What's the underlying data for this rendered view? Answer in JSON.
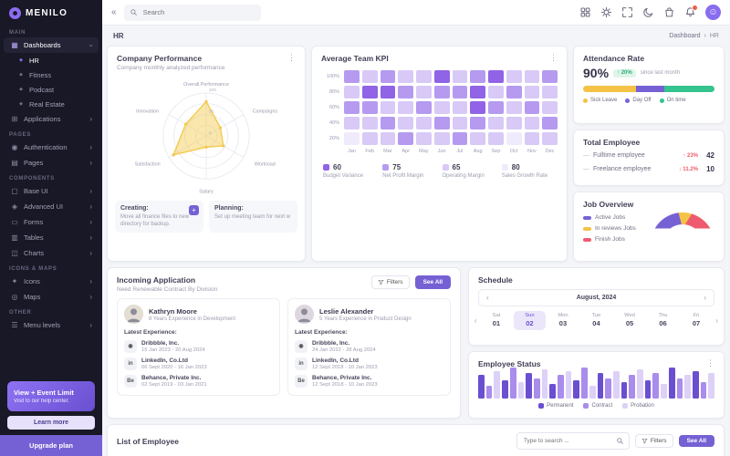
{
  "app": {
    "name": "MENILO"
  },
  "topbar": {
    "back_glyph": "«",
    "search_placeholder": "Search",
    "avatar_glyph": "☺"
  },
  "breadcrumb": {
    "title": "HR",
    "root": "Dashboard",
    "separator": "›",
    "current": "HR"
  },
  "sidebar": {
    "sections": [
      {
        "label": "MAIN",
        "items": [
          {
            "label": "Dashboards",
            "glyph": "▦"
          },
          {
            "label": "HR",
            "glyph": "◆"
          },
          {
            "label": "Fitness",
            "glyph": "◆"
          },
          {
            "label": "Podcast",
            "glyph": "◆"
          },
          {
            "label": "Real Estate",
            "glyph": "◆"
          },
          {
            "label": "Applications",
            "glyph": "⊞"
          }
        ]
      },
      {
        "label": "PAGES",
        "items": [
          {
            "label": "Authentication",
            "glyph": "◉"
          },
          {
            "label": "Pages",
            "glyph": "▤"
          }
        ]
      },
      {
        "label": "COMPONENTS",
        "items": [
          {
            "label": "Base UI",
            "glyph": "▢"
          },
          {
            "label": "Advanced UI",
            "glyph": "◈"
          },
          {
            "label": "Forms",
            "glyph": "▭"
          },
          {
            "label": "Tables",
            "glyph": "▥"
          },
          {
            "label": "Charts",
            "glyph": "◫"
          }
        ]
      },
      {
        "label": "ICONS & MAPS",
        "items": [
          {
            "label": "Icons",
            "glyph": "✦"
          },
          {
            "label": "Maps",
            "glyph": "◎"
          }
        ]
      },
      {
        "label": "OTHER",
        "items": [
          {
            "label": "Menu levels",
            "glyph": "☰"
          }
        ]
      }
    ],
    "promo": {
      "title": "View + Event Limit",
      "subtitle": "Visit to our help center.",
      "learn_more": "Learn more",
      "upgrade": "Upgrade plan"
    }
  },
  "company_performance": {
    "title": "Company Performance",
    "subtitle": "Company monthly analyzed performance",
    "creating_label": "Creating:",
    "creating_text": "Move all finance files to new directory for backup.",
    "planning_label": "Planning:",
    "planning_text": "Set up meeting team for next w"
  },
  "avg_team_kpi": {
    "title": "Average Team KPI",
    "legend": [
      {
        "value": "60",
        "label": "Budget Variance",
        "color": "#9163e6"
      },
      {
        "value": "75",
        "label": "Net Profit Margin",
        "color": "#b59af0"
      },
      {
        "value": "65",
        "label": "Operating Margin",
        "color": "#d8c9f6"
      },
      {
        "value": "80",
        "label": "Sales Growth Rate",
        "color": "#f0ebfc"
      }
    ]
  },
  "attendance": {
    "title": "Attendance Rate",
    "value": "90%",
    "delta": "↑ 20%",
    "note": "since last month",
    "legend": [
      {
        "label": "Sick Leave",
        "color": "#f4c245"
      },
      {
        "label": "Day Off",
        "color": "#7661d4"
      },
      {
        "label": "On time",
        "color": "#35c48e"
      }
    ]
  },
  "total_employee": {
    "title": "Total Employee",
    "rows": [
      {
        "dash": "—",
        "label": "Fulltime employee",
        "delta": "↑ 23%",
        "delta_color": "#ee5d6c",
        "value": "42"
      },
      {
        "dash": "—",
        "label": "Freelance employee",
        "delta": "↓ 11.2%",
        "delta_color": "#ee5d6c",
        "value": "10"
      }
    ]
  },
  "job_overview": {
    "title": "Job Overview",
    "legend": [
      {
        "label": "Active Jobs",
        "color": "#7661d4"
      },
      {
        "label": "In reviews Jobs",
        "color": "#f4c245"
      },
      {
        "label": "Finish Jobs",
        "color": "#ef5b6e"
      }
    ]
  },
  "incoming_application": {
    "title": "Incoming Application",
    "subtitle": "Need Renewable Contract By Division",
    "filters_label": "Filters",
    "see_all_label": "See All",
    "latest_label": "Latest Experience:",
    "applicants": [
      {
        "name": "Kathryn Moore",
        "experience": "8 Years Experience in Development",
        "entries": [
          {
            "icon": "dribbble-icon",
            "glyph": "◉",
            "company": "Dribbble, Inc.",
            "period": "15 Jan 2023 - 20 Aug 2024"
          },
          {
            "icon": "linkedin-icon",
            "glyph": "in",
            "company": "LinkedIn, Co.Ltd",
            "period": "06 Sept 2020 - 16 Jan 2023"
          },
          {
            "icon": "behance-icon",
            "glyph": "Be",
            "company": "Behance, Private Inc.",
            "period": "02 Sept 2019 - 03 Jan 2021"
          }
        ]
      },
      {
        "name": "Leslie Alexander",
        "experience": "5 Years Experience in Product Design",
        "entries": [
          {
            "icon": "dribbble-icon",
            "glyph": "◉",
            "company": "Dribbble, Inc.",
            "period": "24 Jan 2022 - 28 Aug 2024"
          },
          {
            "icon": "linkedin-icon",
            "glyph": "in",
            "company": "LinkedIn, Co.Ltd",
            "period": "12 Sept 2018 - 10 Jan 2023"
          },
          {
            "icon": "behance-icon",
            "glyph": "Be",
            "company": "Behance, Private Inc.",
            "period": "12 Sept 2018 - 10 Jan 2023"
          }
        ]
      }
    ]
  },
  "schedule": {
    "title": "Schedule",
    "month": "August, 2024",
    "days": [
      {
        "dow": "Sat",
        "num": "01"
      },
      {
        "dow": "Sun",
        "num": "02"
      },
      {
        "dow": "Mon",
        "num": "03"
      },
      {
        "dow": "Tue",
        "num": "04"
      },
      {
        "dow": "Wed",
        "num": "05"
      },
      {
        "dow": "Thu",
        "num": "06"
      },
      {
        "dow": "Fri",
        "num": "07"
      }
    ]
  },
  "employee_status": {
    "title": "Employee Status",
    "legend": [
      {
        "label": "Permanent",
        "color": "#6a4fd0"
      },
      {
        "label": "Contract",
        "color": "#a98ceb"
      },
      {
        "label": "Probation",
        "color": "#ddd1f7"
      }
    ]
  },
  "list_of_employee": {
    "title": "List of Employee",
    "search_placeholder": "Type to search ...",
    "filters_label": "Filters",
    "see_all_label": "See All"
  },
  "chart_data": [
    {
      "id": "company_performance_radar",
      "type": "radar",
      "axes": [
        "Overall Performance",
        "Campaigns",
        "Workload",
        "Salary",
        "Satisfaction",
        "Innovation"
      ],
      "values": [
        80,
        38,
        46,
        26,
        88,
        55
      ],
      "range": [
        0,
        100
      ],
      "ticks": [
        "0",
        "50",
        "100"
      ],
      "fill_color": "#f3c94b"
    },
    {
      "id": "team_kpi_heatmap",
      "type": "heatmap",
      "x_labels": [
        "Jan",
        "Feb",
        "Mar",
        "Apr",
        "May",
        "Jun",
        "Jul",
        "Aug",
        "Sep",
        "Oct",
        "Nov",
        "Dec"
      ],
      "y_labels": [
        "100%",
        "80%",
        "60%",
        "40%",
        "20%"
      ],
      "values": [
        [
          2,
          1,
          2,
          1,
          1,
          3,
          1,
          2,
          3,
          1,
          1,
          2
        ],
        [
          1,
          3,
          3,
          2,
          1,
          2,
          2,
          3,
          1,
          2,
          1,
          1
        ],
        [
          2,
          2,
          1,
          1,
          2,
          1,
          1,
          3,
          2,
          1,
          2,
          1
        ],
        [
          1,
          1,
          2,
          1,
          1,
          2,
          1,
          2,
          1,
          1,
          1,
          2
        ],
        [
          0,
          1,
          1,
          2,
          1,
          1,
          2,
          1,
          1,
          0,
          1,
          1
        ]
      ],
      "palette": [
        "#f0ebfc",
        "#d8c9f6",
        "#b59af0",
        "#9163e6"
      ]
    },
    {
      "id": "attendance_stack",
      "type": "bar",
      "stacked": true,
      "segments": [
        {
          "label": "Sick Leave",
          "value": 40,
          "color": "#f4c245"
        },
        {
          "label": "Day Off",
          "value": 22,
          "color": "#7661d4"
        },
        {
          "label": "On time",
          "value": 38,
          "color": "#35c48e"
        }
      ]
    },
    {
      "id": "job_overview_gauge",
      "type": "pie",
      "style": "half-donut",
      "slices": [
        {
          "label": "Active Jobs",
          "value": 42,
          "color": "#7661d4"
        },
        {
          "label": "In reviews Jobs",
          "value": 26,
          "color": "#f4c245"
        },
        {
          "label": "Finish Jobs",
          "value": 32,
          "color": "#ef5b6e"
        }
      ]
    },
    {
      "id": "employee_status_bars",
      "type": "bar",
      "values": [
        26,
        14,
        30,
        20,
        34,
        18,
        28,
        22,
        32,
        16,
        26,
        30,
        20,
        34,
        14,
        28,
        22,
        30,
        18,
        26,
        32,
        20,
        28,
        16,
        34,
        22,
        26,
        30,
        18,
        28
      ],
      "palette": [
        "#6a4fd0",
        "#a98ceb",
        "#ddd1f7"
      ],
      "series_labels": [
        "Permanent",
        "Contract",
        "Probation"
      ]
    }
  ]
}
